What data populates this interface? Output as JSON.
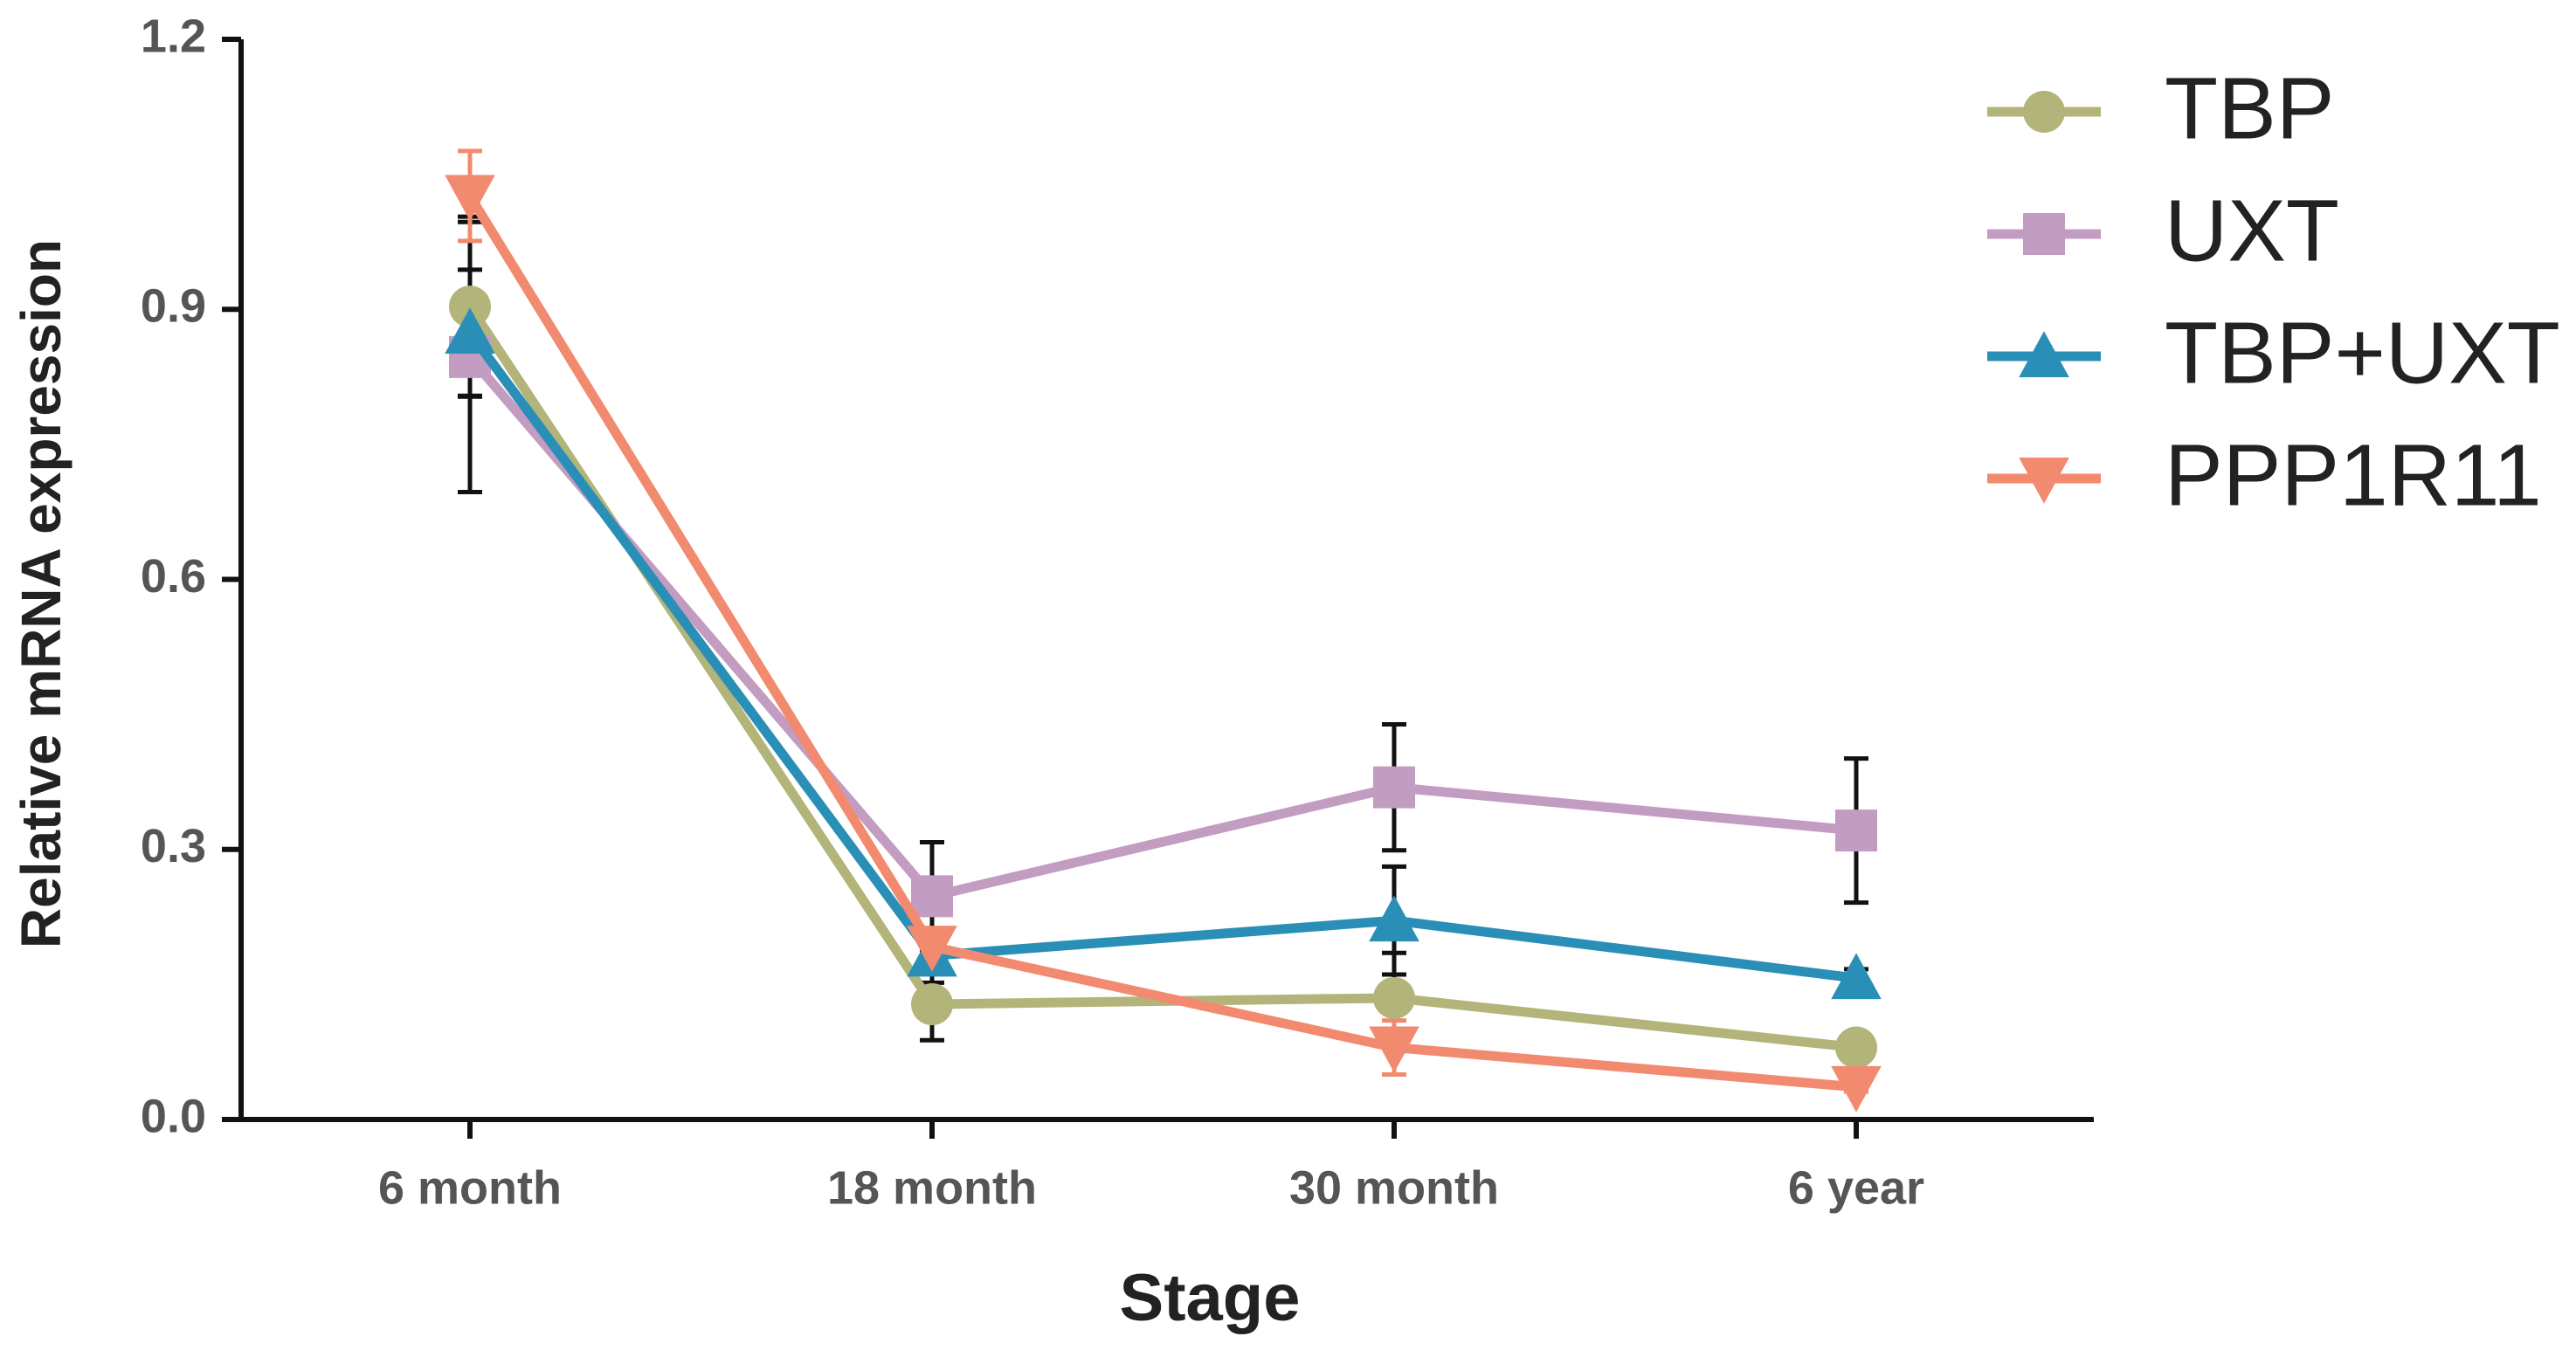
{
  "chart_data": {
    "type": "line",
    "x_label": "Stage",
    "y_label": "Relative mRNA expression",
    "categories": [
      "6 month",
      "18 month",
      "30 month",
      "6 year"
    ],
    "ylim": [
      0,
      1.2
    ],
    "yticks": [
      {
        "value": 0,
        "label": "0.0"
      },
      0.3,
      0.6,
      0.9,
      1.2
    ],
    "series": [
      {
        "name": "TBP",
        "color": "#b3b47a",
        "marker": "circle",
        "values": [
          0.903,
          0.128,
          0.135,
          0.08
        ],
        "errors": [
          0.1,
          0.04,
          0.05,
          0.01
        ]
      },
      {
        "name": "UXT",
        "color": "#c39cc1",
        "marker": "square",
        "values": [
          0.847,
          0.248,
          0.369,
          0.321
        ],
        "errors": [
          0.15,
          0.06,
          0.07,
          0.08
        ]
      },
      {
        "name": "TBP+UXT",
        "color": "#2a8fb7",
        "marker": "triangle-up",
        "values": [
          0.874,
          0.182,
          0.221,
          0.157
        ],
        "errors": [
          0.07,
          0.03,
          0.06,
          0.01
        ]
      },
      {
        "name": "PPP1R11",
        "color": "#f28a6f",
        "marker": "triangle-down",
        "values": [
          1.026,
          0.192,
          0.08,
          0.036
        ],
        "errors": [
          0.05,
          0.02,
          0.03,
          0.005
        ]
      }
    ]
  }
}
